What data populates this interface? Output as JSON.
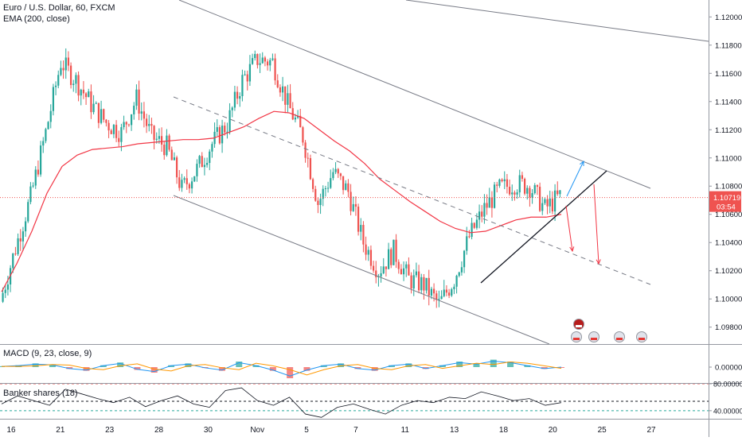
{
  "header": {
    "symbol_line": "Euro / U.S. Dollar, 60, FXCM",
    "ema_label": "EMA (200, close)",
    "macd_label": "MACD (9, 23, close, 9)",
    "banker_label": "Banker shares (18)"
  },
  "price_axis": {
    "ticks": [
      "1.12000",
      "1.11800",
      "1.11600",
      "1.11400",
      "1.11200",
      "1.11000",
      "1.10800",
      "1.10600",
      "1.10400",
      "1.10200",
      "1.10000",
      "1.09800"
    ],
    "tick_values": [
      1.12,
      1.118,
      1.116,
      1.114,
      1.112,
      1.11,
      1.108,
      1.106,
      1.104,
      1.102,
      1.1,
      1.098
    ],
    "current_price": "1.10719",
    "current_value": 1.10719,
    "countdown": "03:54",
    "range": [
      1.0968,
      1.1212
    ]
  },
  "macd_axis": {
    "ticks": [
      "0.00000"
    ]
  },
  "banker_axis": {
    "ticks": [
      "80.00000",
      "40.00000"
    ]
  },
  "time_axis": {
    "labels": [
      "16",
      "21",
      "23",
      "28",
      "30",
      "Nov",
      "5",
      "7",
      "11",
      "13",
      "18",
      "20",
      "25",
      "27"
    ]
  },
  "colors": {
    "up": "#26a69a",
    "down": "#ef5350",
    "ema": "#f23645",
    "channel": "#787b86",
    "price_tag": "#ef5350",
    "arrow_blue": "#2196f3",
    "arrow_red": "#f23645",
    "macd": "#2196f3",
    "signal": "#ff9800",
    "banker_line": "#131722"
  },
  "chart_data": {
    "type": "line",
    "series": [
      {
        "name": "Euro / U.S. Dollar, 60, FXCM",
        "values": [
          1.0998,
          1.1036,
          1.1072,
          1.1118,
          1.1168,
          1.1155,
          1.1138,
          1.1125,
          1.1118,
          1.1142,
          1.1115,
          1.1108,
          1.1078,
          1.1092,
          1.111,
          1.1124,
          1.1155,
          1.117,
          1.1168,
          1.1138,
          1.1115,
          1.1068,
          1.109,
          1.1076,
          1.104,
          1.102,
          1.1034,
          1.1014,
          1.101,
          1.0996,
          1.1014,
          1.1044,
          1.1064,
          1.1078,
          1.1082,
          1.108,
          1.1064,
          1.1073
        ]
      },
      {
        "name": "EMA (200, close)",
        "values": [
          1.1005,
          1.1025,
          1.1048,
          1.1075,
          1.1094,
          1.1102,
          1.1106,
          1.1107,
          1.1108,
          1.111,
          1.1111,
          1.1112,
          1.1113,
          1.1113,
          1.1114,
          1.1118,
          1.1122,
          1.1128,
          1.1133,
          1.1132,
          1.1128,
          1.112,
          1.1112,
          1.1105,
          1.1096,
          1.1085,
          1.1077,
          1.1069,
          1.1062,
          1.1055,
          1.105,
          1.1047,
          1.1048,
          1.1052,
          1.1056,
          1.1058,
          1.1058,
          1.106
        ]
      }
    ],
    "macd": {
      "values": [
        5e-05,
        0.0001,
        0.0002,
        0.00015,
        -0.0001,
        -0.0002,
        0.0001,
        0.00025,
        -0.00015,
        -0.0003,
        0.0001,
        0.0002,
        -5e-05,
        -0.0002,
        0.0003,
        0.0001,
        -0.0002,
        -0.0006,
        -0.0002,
        0.0001,
        0.0002,
        -0.0001,
        -0.0002,
        0.0001,
        0.0002,
        -0.0001,
        0.0001,
        0.0003,
        0.0002,
        0.0004,
        0.0003,
        0.0001,
        -0.0001,
        0.0
      ]
    },
    "banker": {
      "values": [
        50,
        62,
        55,
        48,
        72,
        65,
        58,
        52,
        60,
        46,
        55,
        62,
        50,
        45,
        70,
        74,
        55,
        48,
        60,
        35,
        30,
        45,
        50,
        42,
        35,
        48,
        55,
        52,
        60,
        58,
        68,
        62,
        55,
        58,
        48,
        52
      ],
      "ylim": [
        28,
        80
      ]
    },
    "ylim": [
      1.0968,
      1.1212
    ],
    "grid": false
  }
}
